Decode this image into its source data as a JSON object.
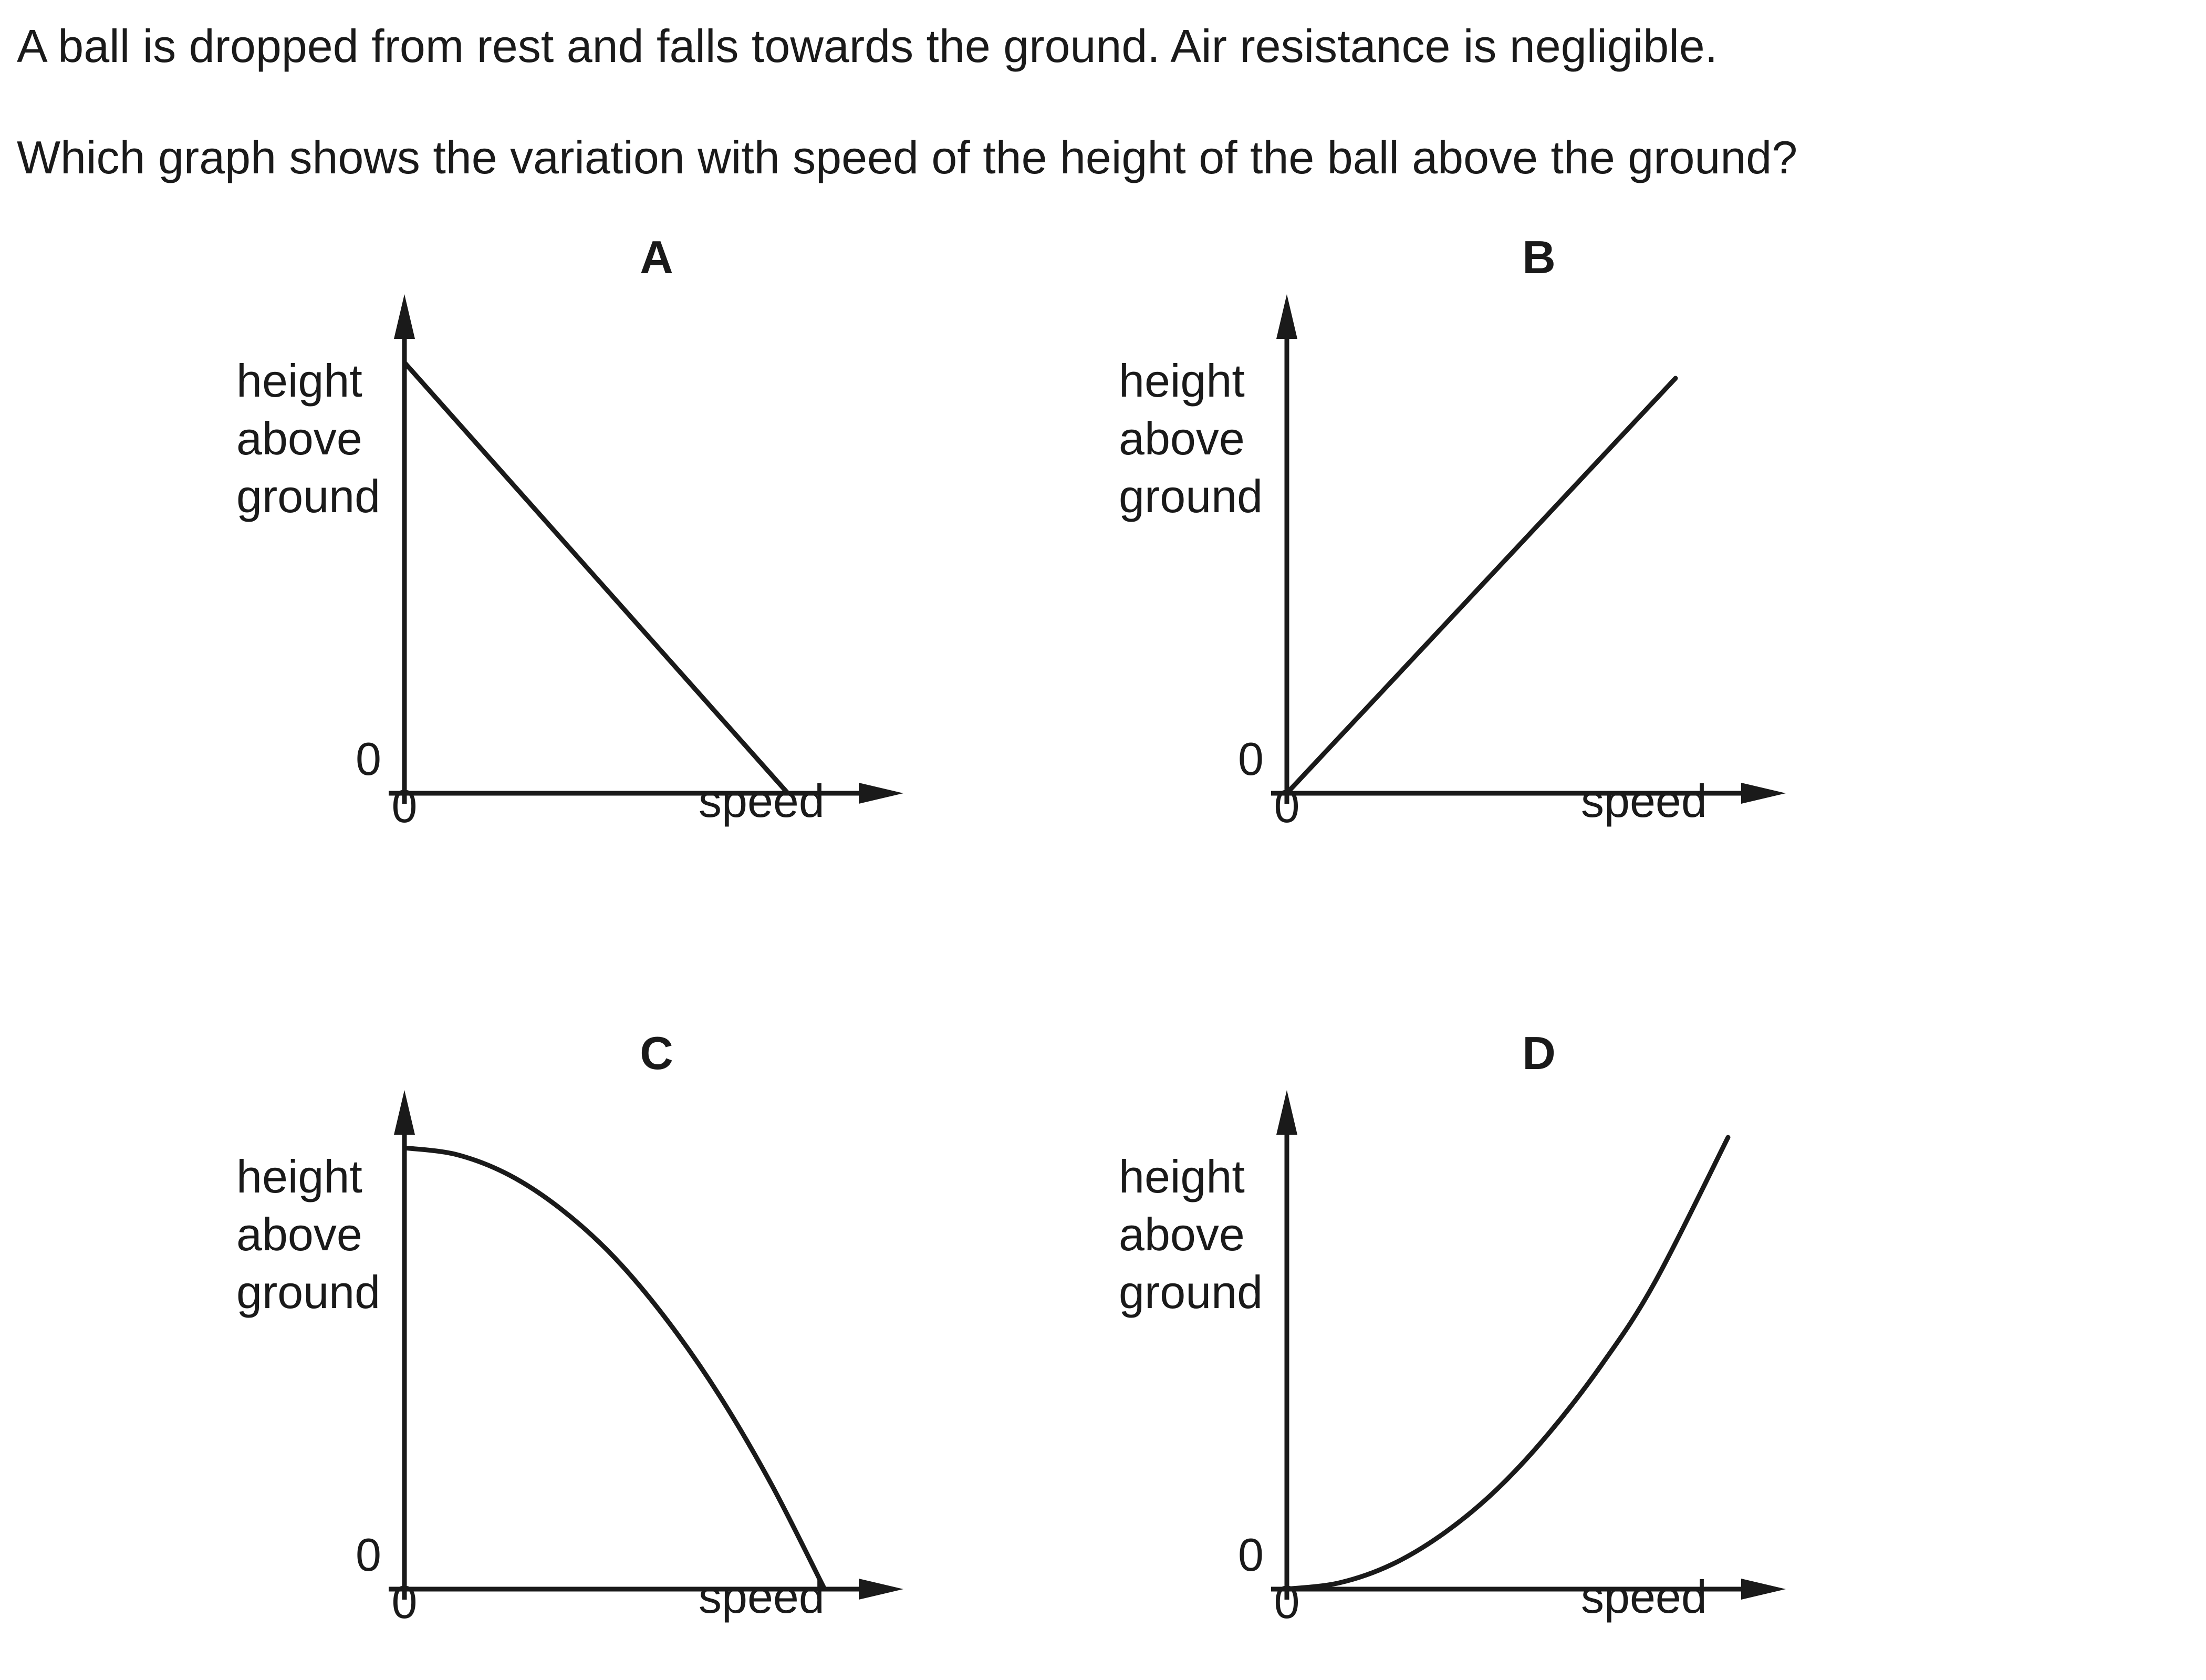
{
  "question": {
    "line1": "A ball is dropped from rest and falls towards the ground. Air resistance is negligible.",
    "line2": "Which graph shows the variation with speed of the height of the ball above the ground?"
  },
  "axis_text": {
    "y_label_lines": [
      "height",
      "above",
      "ground"
    ],
    "x_label": "speed",
    "origin_y": "0",
    "origin_x": "0"
  },
  "chart_data": [
    {
      "type": "line",
      "title": "A",
      "xlabel": "speed",
      "ylabel": "height above ground",
      "xlim": [
        0,
        1
      ],
      "ylim": [
        0,
        1
      ],
      "shape": "straight line decreasing",
      "series": [
        {
          "x": [
            0,
            0.73
          ],
          "y": [
            0.82,
            0
          ]
        }
      ]
    },
    {
      "type": "line",
      "title": "B",
      "xlabel": "speed",
      "ylabel": "height above ground",
      "xlim": [
        0,
        1
      ],
      "ylim": [
        0,
        1
      ],
      "shape": "straight line increasing through origin",
      "series": [
        {
          "x": [
            0,
            0.74
          ],
          "y": [
            0,
            0.79
          ]
        }
      ]
    },
    {
      "type": "line",
      "title": "C",
      "xlabel": "speed",
      "ylabel": "height above ground",
      "xlim": [
        0,
        1
      ],
      "ylim": [
        0,
        1
      ],
      "shape": "concave-down curve decreasing",
      "series": [
        {
          "x": [
            0,
            0.1,
            0.2,
            0.3,
            0.4,
            0.5,
            0.6,
            0.7,
            0.8
          ],
          "y": [
            0.84,
            0.827,
            0.788,
            0.722,
            0.631,
            0.512,
            0.368,
            0.197,
            0
          ]
        }
      ]
    },
    {
      "type": "line",
      "title": "D",
      "xlabel": "speed",
      "ylabel": "height above ground",
      "xlim": [
        0,
        1
      ],
      "ylim": [
        0,
        1
      ],
      "shape": "concave-up curve increasing from origin",
      "series": [
        {
          "x": [
            0,
            0.1,
            0.2,
            0.3,
            0.4,
            0.5,
            0.6,
            0.7,
            0.84
          ],
          "y": [
            0,
            0.012,
            0.047,
            0.107,
            0.19,
            0.298,
            0.428,
            0.583,
            0.86
          ]
        }
      ]
    }
  ]
}
